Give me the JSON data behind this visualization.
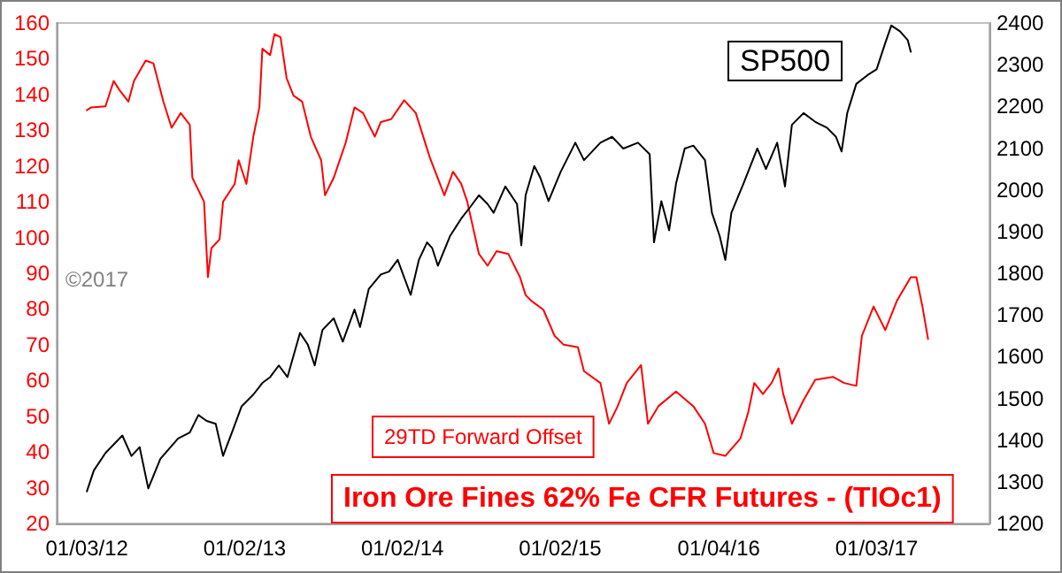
{
  "chart_data": {
    "type": "line",
    "xlim": [
      "2011-10-25",
      "2017-09-21"
    ],
    "xticks": [
      {
        "value": "2012-01-03",
        "label": "01/03/12"
      },
      {
        "value": "2013-01-02",
        "label": "01/02/13"
      },
      {
        "value": "2014-01-02",
        "label": "01/02/14"
      },
      {
        "value": "2015-01-02",
        "label": "01/02/15"
      },
      {
        "value": "2016-01-04",
        "label": "01/04/16"
      },
      {
        "value": "2017-01-03",
        "label": "01/03/17"
      }
    ],
    "ylim": [
      20,
      160
    ],
    "yticks": [
      20,
      30,
      40,
      50,
      60,
      70,
      80,
      90,
      100,
      110,
      120,
      130,
      140,
      150,
      160
    ],
    "y2lim": [
      1200,
      2400
    ],
    "y2ticks": [
      1200,
      1300,
      1400,
      1500,
      1600,
      1700,
      1800,
      1900,
      2000,
      2100,
      2200,
      2300,
      2400
    ],
    "grid": false,
    "legend": false,
    "marker": "none",
    "line_style": "solid",
    "annotations": [
      "29TD Forward Offset",
      "©2017"
    ],
    "series": [
      {
        "name": "Iron Ore Fines 62% Fe CFR Futures - (TIOc1)",
        "color": "#ff0000",
        "x": [
          "2012-01-03",
          "2012-01-13",
          "2012-02-15",
          "2012-03-05",
          "2012-03-18",
          "2012-04-08",
          "2012-04-21",
          "2012-05-18",
          "2012-06-05",
          "2012-06-28",
          "2012-07-17",
          "2012-08-07",
          "2012-08-28",
          "2012-09-03",
          "2012-09-30",
          "2012-10-09",
          "2012-10-17",
          "2012-11-05",
          "2012-11-13",
          "2012-12-10",
          "2012-12-19",
          "2013-01-06",
          "2013-01-22",
          "2013-02-05",
          "2013-02-12",
          "2013-03-02",
          "2013-03-12",
          "2013-03-26",
          "2013-04-09",
          "2013-04-25",
          "2013-05-15",
          "2013-06-04",
          "2013-06-28",
          "2013-07-07",
          "2013-07-27",
          "2013-08-24",
          "2013-09-13",
          "2013-10-03",
          "2013-10-30",
          "2013-11-13",
          "2013-12-07",
          "2014-01-06",
          "2014-02-02",
          "2014-03-06",
          "2014-04-09",
          "2014-04-29",
          "2014-05-18",
          "2014-06-01",
          "2014-06-28",
          "2014-07-18",
          "2014-08-08",
          "2014-09-04",
          "2014-10-01",
          "2014-10-14",
          "2014-10-27",
          "2014-11-24",
          "2014-12-20",
          "2015-01-10",
          "2015-02-12",
          "2015-02-26",
          "2015-04-05",
          "2015-04-25",
          "2015-05-15",
          "2015-06-05",
          "2015-07-08",
          "2015-07-24",
          "2015-08-17",
          "2015-09-27",
          "2015-11-06",
          "2015-12-03",
          "2015-12-23",
          "2016-01-19",
          "2016-02-23",
          "2016-03-12",
          "2016-03-26",
          "2016-04-15",
          "2016-05-05",
          "2016-05-21",
          "2016-06-01",
          "2016-06-21",
          "2016-07-18",
          "2016-08-14",
          "2016-09-24",
          "2016-10-20",
          "2016-11-17",
          "2016-11-30",
          "2016-12-27",
          "2017-01-23",
          "2017-02-19",
          "2017-03-23",
          "2017-04-05",
          "2017-04-19",
          "2017-05-02"
        ],
        "values": [
          135.6,
          136.4,
          136.7,
          143.8,
          141.3,
          138,
          143.8,
          149.5,
          148.7,
          138,
          130.7,
          134.8,
          131.5,
          116.7,
          110,
          88.9,
          97,
          99.5,
          110,
          115,
          121.6,
          115,
          128.2,
          136.4,
          152.8,
          151,
          156.9,
          156,
          144.6,
          139.7,
          138,
          128.2,
          121.6,
          111.8,
          116.7,
          126.6,
          136.4,
          134.8,
          128.2,
          132.3,
          133.1,
          138.4,
          134.8,
          122.5,
          111.8,
          118.4,
          115,
          110,
          95.4,
          92.1,
          96.2,
          95.4,
          88.9,
          83.9,
          82.3,
          79.8,
          72.5,
          70,
          69.3,
          62.6,
          59.3,
          47.9,
          52.8,
          59.3,
          64.3,
          47.9,
          52.8,
          56.9,
          52.8,
          47.9,
          39.7,
          38.9,
          43.8,
          51.1,
          59.3,
          56.2,
          59.3,
          63.4,
          56.2,
          47.9,
          54.5,
          60.2,
          61,
          59.3,
          58.5,
          72.5,
          80.7,
          74.1,
          82.3,
          88.9,
          88.9,
          80.7,
          71.6
        ]
      },
      {
        "name": "SP500",
        "color": "#000000",
        "axis": "y2",
        "x": [
          "2012-01-03",
          "2012-01-19",
          "2012-02-15",
          "2012-03-25",
          "2012-04-15",
          "2012-05-04",
          "2012-05-24",
          "2012-06-21",
          "2012-08-01",
          "2012-08-28",
          "2012-09-17",
          "2012-10-06",
          "2012-10-27",
          "2012-11-13",
          "2012-12-06",
          "2012-12-26",
          "2013-01-22",
          "2013-02-12",
          "2013-03-02",
          "2013-03-22",
          "2013-04-11",
          "2013-05-10",
          "2013-05-28",
          "2013-06-13",
          "2013-07-01",
          "2013-07-27",
          "2013-08-17",
          "2013-09-13",
          "2013-09-26",
          "2013-10-16",
          "2013-11-13",
          "2013-12-02",
          "2013-12-22",
          "2014-01-21",
          "2014-02-09",
          "2014-02-28",
          "2014-03-12",
          "2014-03-25",
          "2014-04-22",
          "2014-05-18",
          "2014-06-08",
          "2014-06-28",
          "2014-07-18",
          "2014-08-01",
          "2014-08-28",
          "2014-09-24",
          "2014-10-04",
          "2014-10-14",
          "2014-11-03",
          "2014-11-17",
          "2014-12-06",
          "2015-01-03",
          "2015-02-06",
          "2015-02-26",
          "2015-04-05",
          "2015-05-02",
          "2015-05-28",
          "2015-07-01",
          "2015-07-28",
          "2015-08-07",
          "2015-08-24",
          "2015-09-11",
          "2015-09-27",
          "2015-10-17",
          "2015-11-06",
          "2015-12-03",
          "2015-12-19",
          "2016-01-06",
          "2016-01-19",
          "2016-02-02",
          "2016-03-01",
          "2016-04-02",
          "2016-04-22",
          "2016-05-18",
          "2016-06-05",
          "2016-06-21",
          "2016-07-18",
          "2016-08-14",
          "2016-09-10",
          "2016-10-01",
          "2016-10-14",
          "2016-10-27",
          "2016-11-17",
          "2016-12-13",
          "2017-01-03",
          "2017-01-23",
          "2017-02-06",
          "2017-02-26",
          "2017-03-16",
          "2017-03-23"
        ],
        "values": [
          1277,
          1327,
          1369,
          1411,
          1362,
          1383,
          1284,
          1355,
          1404,
          1418,
          1460,
          1446,
          1439,
          1362,
          1425,
          1481,
          1509,
          1537,
          1551,
          1579,
          1551,
          1657,
          1629,
          1579,
          1664,
          1692,
          1636,
          1713,
          1671,
          1762,
          1797,
          1804,
          1832,
          1748,
          1832,
          1874,
          1860,
          1818,
          1889,
          1931,
          1959,
          1987,
          1966,
          1945,
          2008,
          1966,
          1867,
          1987,
          2057,
          2029,
          1973,
          2043,
          2113,
          2071,
          2113,
          2127,
          2099,
          2113,
          2085,
          1874,
          1973,
          1903,
          2015,
          2099,
          2106,
          2071,
          1945,
          1889,
          1832,
          1945,
          2015,
          2099,
          2050,
          2113,
          2008,
          2156,
          2184,
          2163,
          2149,
          2127,
          2092,
          2184,
          2254,
          2275,
          2289,
          2352,
          2394,
          2380,
          2359,
          2331
        ]
      }
    ]
  }
}
